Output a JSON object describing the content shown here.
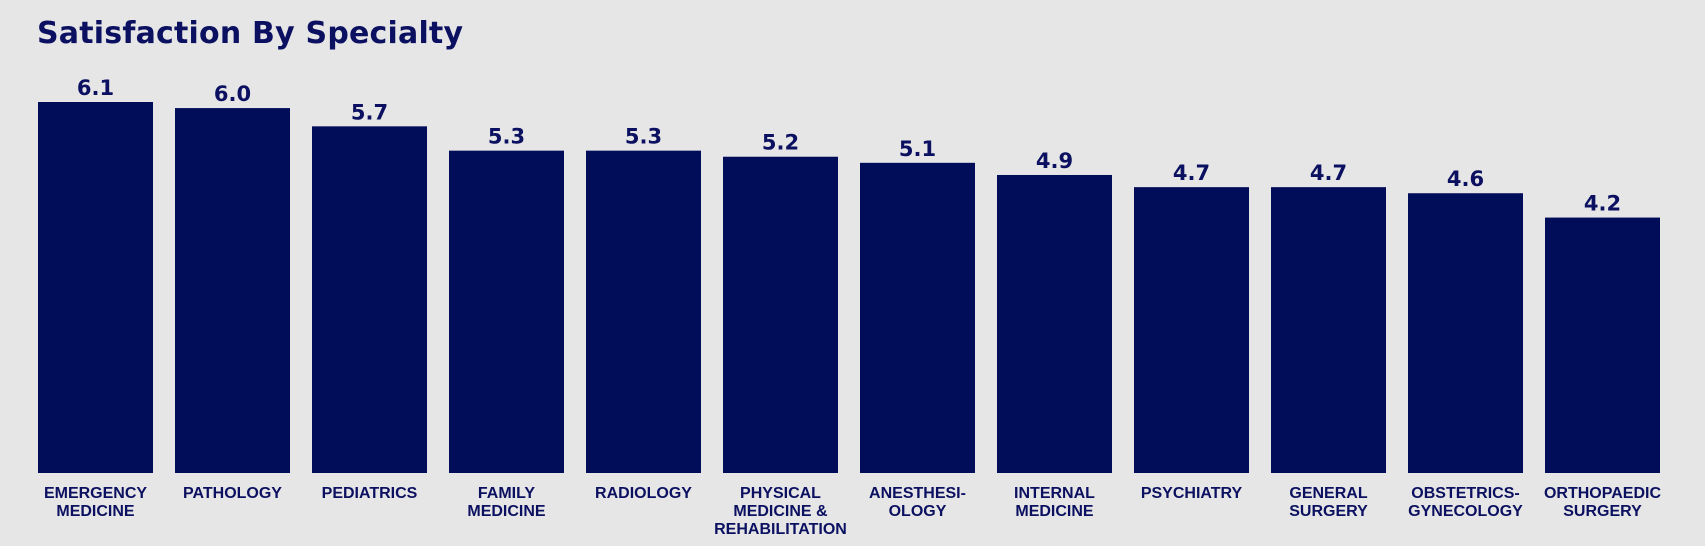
{
  "chart_data": {
    "type": "bar",
    "title": "Satisfaction By Specialty",
    "xlabel": "",
    "ylabel": "",
    "ylim": [
      0,
      6.1
    ],
    "grid": false,
    "legend": "none",
    "colors": {
      "bar": "#020d5a",
      "text": "#0b1060",
      "background": "#e6e6e6"
    },
    "categories": [
      [
        "EMERGENCY",
        "MEDICINE"
      ],
      [
        "PATHOLOGY"
      ],
      [
        "PEDIATRICS"
      ],
      [
        "FAMILY",
        "MEDICINE"
      ],
      [
        "RADIOLOGY"
      ],
      [
        "PHYSICAL",
        "MEDICINE &",
        "REHABILITATION"
      ],
      [
        "ANESTHESI-",
        "OLOGY"
      ],
      [
        "INTERNAL",
        "MEDICINE"
      ],
      [
        "PSYCHIATRY"
      ],
      [
        "GENERAL",
        "SURGERY"
      ],
      [
        "OBSTETRICS-",
        "GYNECOLOGY"
      ],
      [
        "ORTHOPAEDIC",
        "SURGERY"
      ]
    ],
    "values": [
      6.1,
      6.0,
      5.7,
      5.3,
      5.3,
      5.2,
      5.1,
      4.9,
      4.7,
      4.7,
      4.6,
      4.2
    ],
    "value_labels": [
      "6.1",
      "6.0",
      "5.7",
      "5.3",
      "5.3",
      "5.2",
      "5.1",
      "4.9",
      "4.7",
      "4.7",
      "4.6",
      "4.2"
    ]
  }
}
